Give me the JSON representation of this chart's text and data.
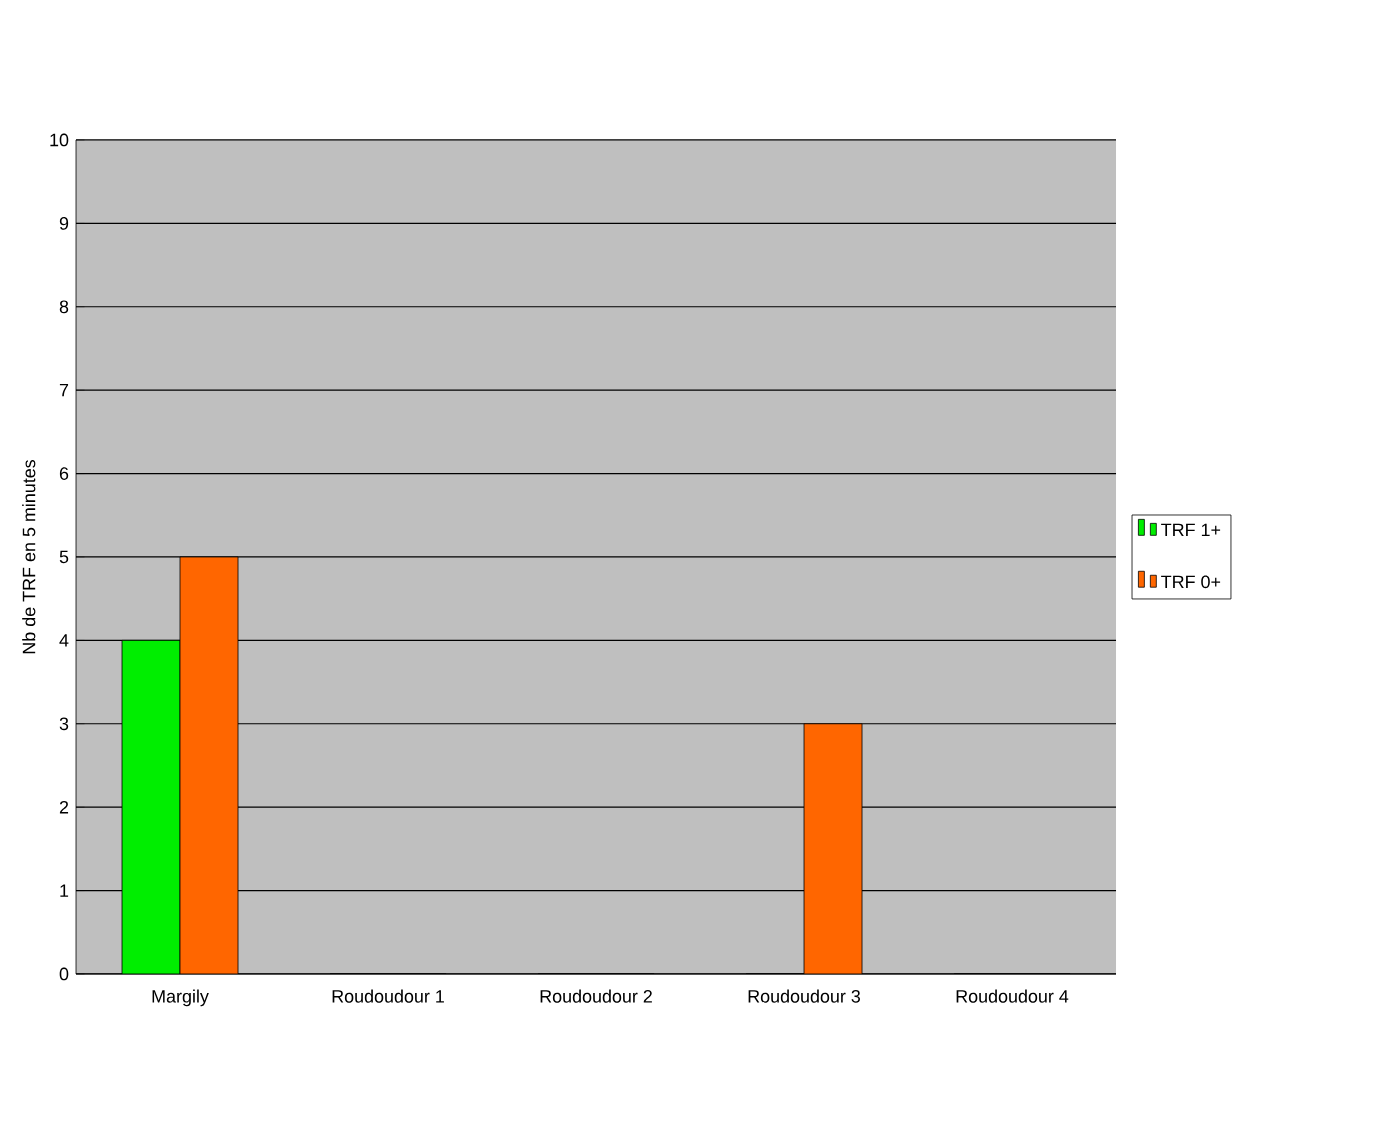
{
  "chart_data": {
    "type": "bar",
    "ylabel": "Nb de TRF en 5 minutes",
    "categories": [
      "Margily",
      "Roudoudour 1",
      "Roudoudour 2",
      "Roudoudour 3",
      "Roudoudour 4"
    ],
    "series": [
      {
        "name": "TRF 1+",
        "color": "#00ee00",
        "values": [
          4,
          0,
          0,
          0,
          0
        ]
      },
      {
        "name": "TRF 0+",
        "color": "#ff6600",
        "values": [
          5,
          0,
          0,
          3,
          0
        ]
      }
    ],
    "ylim": [
      0,
      10
    ],
    "yticks": [
      0,
      1,
      2,
      3,
      4,
      5,
      6,
      7,
      8,
      9,
      10
    ],
    "grid": "y",
    "legend": "right"
  }
}
